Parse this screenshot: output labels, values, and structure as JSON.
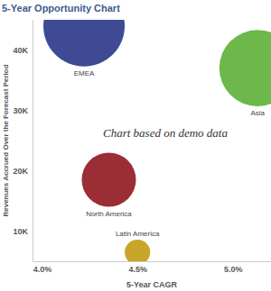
{
  "chart_data": {
    "type": "bubble",
    "title": "5-Year Opportunity Chart",
    "x_label": "5-Year CAGR",
    "y_label": "Revenues Accrued Over the Forecast Period",
    "annotation": "Chart based on demo data",
    "categories": [
      "EMEA",
      "Asia",
      "North America",
      "Latin America"
    ],
    "x": [
      4.22,
      5.13,
      4.35,
      4.5
    ],
    "values": [
      44000,
      37000,
      18500,
      6500
    ],
    "size": [
      45,
      40,
      20,
      4.4
    ],
    "colors": [
      "#3e4a94",
      "#6cb84a",
      "#9b2d35",
      "#c9a52a"
    ],
    "xlim": [
      3.95,
      5.2
    ],
    "xticks": [
      {
        "value": 4.0,
        "label": "4.0%"
      },
      {
        "value": 4.5,
        "label": "4.5%"
      },
      {
        "value": 5.0,
        "label": "5.0%"
      }
    ],
    "ylim": [
      5000,
      45000
    ],
    "yticks": [
      {
        "value": 10000,
        "label": "10K"
      },
      {
        "value": 20000,
        "label": "20K"
      },
      {
        "value": 30000,
        "label": "30K"
      },
      {
        "value": 40000,
        "label": "40K"
      }
    ],
    "grid": false,
    "data_labels": false
  }
}
